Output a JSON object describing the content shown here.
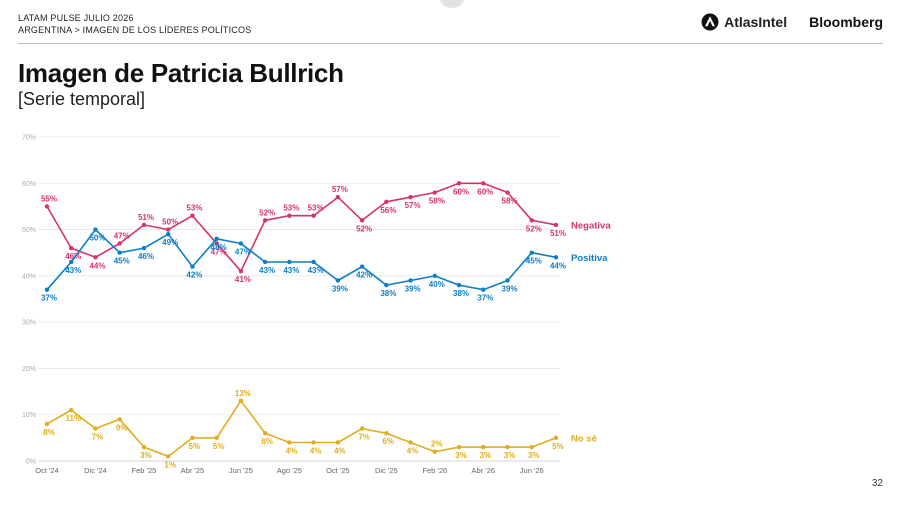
{
  "header": {
    "line1": "LATAM PULSE JULIO 2026",
    "line2": "ARGENTINA > IMAGEN DE LOS LÍDERES POLÍTICOS"
  },
  "logos": {
    "atlas": "AtlasIntel",
    "bloomberg": "Bloomberg"
  },
  "page_number": "32",
  "colors": {
    "negativa": "#d6336c",
    "positiva": "#0b7fc7",
    "nose": "#e0ad1d"
  },
  "chart_data": {
    "type": "line",
    "title": "Imagen de Patricia Bullrich",
    "subtitle": "[Serie temporal]",
    "x_tick_labels": [
      "Oct '24",
      "Dic '24",
      "Feb '25",
      "Abr '25",
      "Jun '25",
      "Ago '25",
      "Oct '25",
      "Dic '25",
      "Feb '26",
      "Abr '26",
      "Jun '26"
    ],
    "y_tick_labels": [
      "0%",
      "10%",
      "20%",
      "30%",
      "40%",
      "50%",
      "60%",
      "70%"
    ],
    "ylim": [
      0,
      70
    ],
    "grid": true,
    "series": [
      {
        "name": "Negativa",
        "color": "#d6336c",
        "values": [
          55,
          46,
          44,
          47,
          51,
          50,
          53,
          47,
          41,
          52,
          53,
          53,
          57,
          52,
          56,
          57,
          58,
          60,
          60,
          58,
          52,
          51
        ]
      },
      {
        "name": "Positiva",
        "color": "#0b7fc7",
        "values": [
          37,
          43,
          50,
          45,
          46,
          49,
          42,
          48,
          47,
          43,
          43,
          43,
          39,
          42,
          38,
          39,
          40,
          38,
          37,
          39,
          45,
          44
        ]
      },
      {
        "name": "No sé",
        "color": "#e0ad1d",
        "values": [
          8,
          11,
          7,
          9,
          3,
          1,
          5,
          5,
          13,
          6,
          4,
          4,
          4,
          7,
          6,
          4,
          2,
          3,
          3,
          3,
          3,
          5
        ]
      }
    ]
  }
}
